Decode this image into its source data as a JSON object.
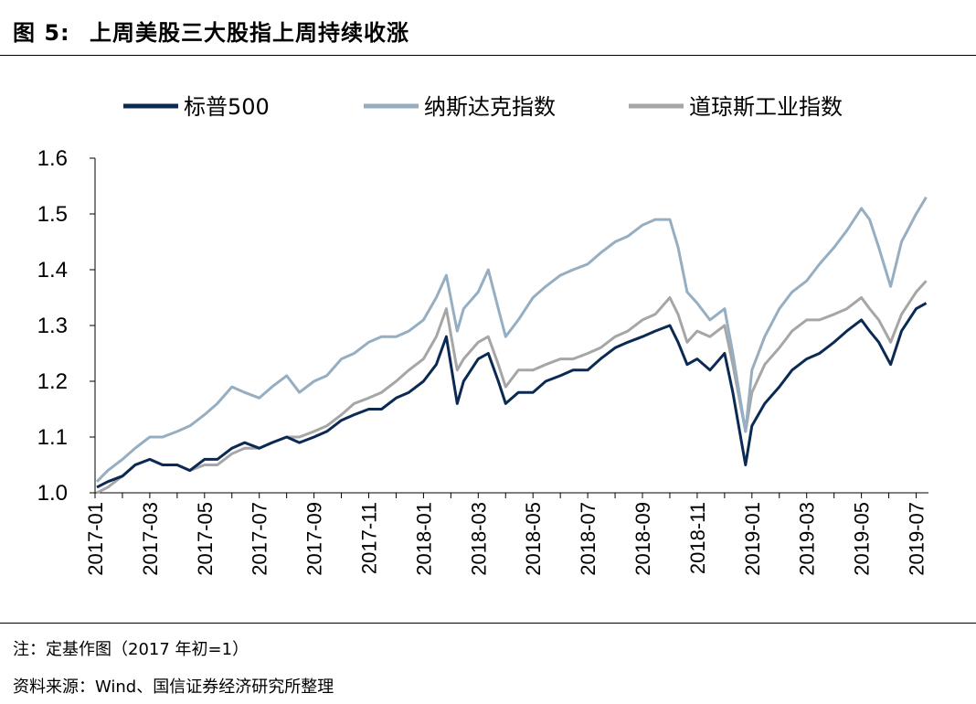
{
  "header": {
    "figure_label": "图 5:",
    "figure_title": "上周美股三大股指上周持续收涨"
  },
  "footer": {
    "note": "注：定基作图（2017 年初=1）",
    "source": "资料来源：Wind、国信证券经济研究所整理"
  },
  "colors": {
    "sp500": "#0b2a53",
    "nasdaq": "#96aec2",
    "dow": "#a6a6a6"
  },
  "chart_data": {
    "type": "line",
    "title": "",
    "xlabel": "",
    "ylabel": "",
    "ylim": [
      1.0,
      1.6
    ],
    "yticks": [
      "1.0",
      "1.1",
      "1.2",
      "1.3",
      "1.4",
      "1.5",
      "1.6"
    ],
    "xlim": [
      "2017-01",
      "2019-07"
    ],
    "xticks": [
      "2017-01",
      "2017-03",
      "2017-05",
      "2017-07",
      "2017-09",
      "2017-11",
      "2018-01",
      "2018-03",
      "2018-05",
      "2018-07",
      "2018-09",
      "2018-11",
      "2019-01",
      "2019-03",
      "2019-05",
      "2019-07"
    ],
    "legend_position": "top",
    "grid": false,
    "x": [
      "2017-01-03",
      "2017-01-15",
      "2017-02-01",
      "2017-02-15",
      "2017-03-01",
      "2017-03-15",
      "2017-04-01",
      "2017-04-15",
      "2017-05-01",
      "2017-05-15",
      "2017-06-01",
      "2017-06-15",
      "2017-07-01",
      "2017-07-15",
      "2017-08-01",
      "2017-08-15",
      "2017-09-01",
      "2017-09-15",
      "2017-10-01",
      "2017-10-15",
      "2017-11-01",
      "2017-11-15",
      "2017-12-01",
      "2017-12-15",
      "2018-01-01",
      "2018-01-15",
      "2018-01-26",
      "2018-02-08",
      "2018-02-15",
      "2018-03-01",
      "2018-03-12",
      "2018-03-23",
      "2018-04-01",
      "2018-04-15",
      "2018-05-01",
      "2018-05-15",
      "2018-06-01",
      "2018-06-15",
      "2018-07-01",
      "2018-07-15",
      "2018-08-01",
      "2018-08-15",
      "2018-09-01",
      "2018-09-15",
      "2018-10-01",
      "2018-10-10",
      "2018-10-20",
      "2018-11-01",
      "2018-11-15",
      "2018-12-01",
      "2018-12-10",
      "2018-12-24",
      "2019-01-01",
      "2019-01-15",
      "2019-02-01",
      "2019-02-15",
      "2019-03-01",
      "2019-03-15",
      "2019-04-01",
      "2019-04-15",
      "2019-05-01",
      "2019-05-10",
      "2019-05-20",
      "2019-06-03",
      "2019-06-15",
      "2019-07-01",
      "2019-07-12"
    ],
    "series": [
      {
        "name": "标普500",
        "values": [
          1.01,
          1.02,
          1.03,
          1.05,
          1.06,
          1.05,
          1.05,
          1.04,
          1.06,
          1.06,
          1.08,
          1.09,
          1.08,
          1.09,
          1.1,
          1.09,
          1.1,
          1.11,
          1.13,
          1.14,
          1.15,
          1.15,
          1.17,
          1.18,
          1.2,
          1.23,
          1.28,
          1.16,
          1.2,
          1.24,
          1.25,
          1.2,
          1.16,
          1.18,
          1.18,
          1.2,
          1.21,
          1.22,
          1.22,
          1.24,
          1.26,
          1.27,
          1.28,
          1.29,
          1.3,
          1.27,
          1.23,
          1.24,
          1.22,
          1.25,
          1.18,
          1.05,
          1.12,
          1.16,
          1.19,
          1.22,
          1.24,
          1.25,
          1.27,
          1.29,
          1.31,
          1.29,
          1.27,
          1.23,
          1.29,
          1.33,
          1.34
        ]
      },
      {
        "name": "纳斯达克指数",
        "values": [
          1.02,
          1.04,
          1.06,
          1.08,
          1.1,
          1.1,
          1.11,
          1.12,
          1.14,
          1.16,
          1.19,
          1.18,
          1.17,
          1.19,
          1.21,
          1.18,
          1.2,
          1.21,
          1.24,
          1.25,
          1.27,
          1.28,
          1.28,
          1.29,
          1.31,
          1.35,
          1.39,
          1.29,
          1.33,
          1.36,
          1.4,
          1.33,
          1.28,
          1.31,
          1.35,
          1.37,
          1.39,
          1.4,
          1.41,
          1.43,
          1.45,
          1.46,
          1.48,
          1.49,
          1.49,
          1.44,
          1.36,
          1.34,
          1.31,
          1.33,
          1.25,
          1.11,
          1.22,
          1.28,
          1.33,
          1.36,
          1.38,
          1.41,
          1.44,
          1.47,
          1.51,
          1.49,
          1.44,
          1.37,
          1.45,
          1.5,
          1.53
        ]
      },
      {
        "name": "道琼斯工业指数",
        "values": [
          1.0,
          1.01,
          1.03,
          1.05,
          1.06,
          1.05,
          1.05,
          1.04,
          1.05,
          1.05,
          1.07,
          1.08,
          1.08,
          1.09,
          1.1,
          1.1,
          1.11,
          1.12,
          1.14,
          1.16,
          1.17,
          1.18,
          1.2,
          1.22,
          1.24,
          1.28,
          1.33,
          1.22,
          1.24,
          1.27,
          1.28,
          1.23,
          1.19,
          1.22,
          1.22,
          1.23,
          1.24,
          1.24,
          1.25,
          1.26,
          1.28,
          1.29,
          1.31,
          1.32,
          1.35,
          1.32,
          1.27,
          1.29,
          1.28,
          1.3,
          1.23,
          1.11,
          1.18,
          1.23,
          1.26,
          1.29,
          1.31,
          1.31,
          1.32,
          1.33,
          1.35,
          1.33,
          1.31,
          1.27,
          1.32,
          1.36,
          1.38
        ]
      }
    ]
  }
}
